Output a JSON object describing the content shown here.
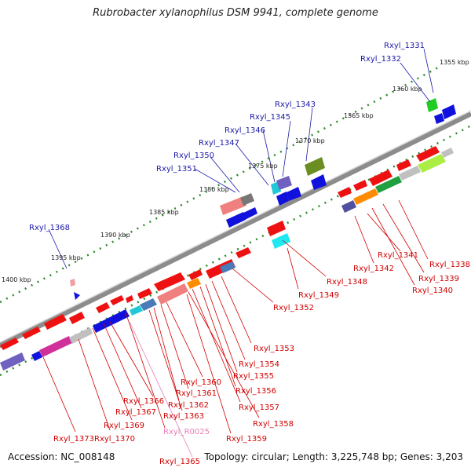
{
  "title": "Rubrobacter xylanophilus DSM 9941, complete genome",
  "footer": {
    "accession": "Accession: NC_008148",
    "summary": "Topology: circular; Length: 3,225,748 bp; Genes: 3,203"
  },
  "ruler": [
    "1355 kbp",
    "1360 kbp",
    "1365 kbp",
    "1370 kbp",
    "1375 kbp",
    "1380 kbp",
    "1385 kbp",
    "1390 kbp",
    "1395 kbp",
    "1400 kbp"
  ],
  "genes_top": [
    "Rxyl_1331",
    "Rxyl_1332",
    "Rxyl_1343",
    "Rxyl_1345",
    "Rxyl_1346",
    "Rxyl_1347",
    "Rxyl_1350",
    "Rxyl_1351",
    "Rxyl_1368"
  ],
  "genes_bottom_right": [
    "Rxyl_1338",
    "Rxyl_1339",
    "Rxyl_1340",
    "Rxyl_1341",
    "Rxyl_1342",
    "Rxyl_1348",
    "Rxyl_1349",
    "Rxyl_1352"
  ],
  "genes_bottom_left": [
    "Rxyl_1353",
    "Rxyl_1354",
    "Rxyl_1355",
    "Rxyl_1356",
    "Rxyl_1357",
    "Rxyl_1358",
    "Rxyl_1359",
    "Rxyl_1360",
    "Rxyl_1361",
    "Rxyl_1362",
    "Rxyl_1363",
    "Rxyl_1366",
    "Rxyl_1367",
    "Rxyl_1369",
    "Rxyl_1370",
    "Rxyl_1373",
    "Rxyl_R0025",
    "Rxyl_1365"
  ],
  "colors": {
    "backbone": "#8c8c8c",
    "forward": "#ee1111",
    "reverse": "#1111dd",
    "label_blue": "#1a1aa8",
    "label_red": "#d10000",
    "label_pink": "#e87cb8",
    "tick": "#2a8a2a"
  }
}
